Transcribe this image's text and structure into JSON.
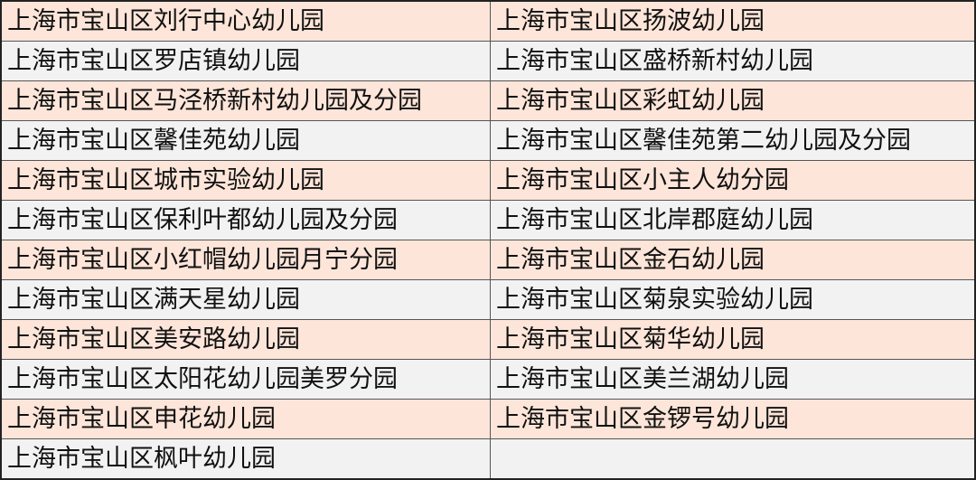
{
  "colors": {
    "odd_row": "#fde5d9",
    "even_row": "#f2f2f2"
  },
  "rows": [
    [
      "上海市宝山区刘行中心幼儿园",
      "上海市宝山区扬波幼儿园"
    ],
    [
      "上海市宝山区罗店镇幼儿园",
      "上海市宝山区盛桥新村幼儿园"
    ],
    [
      "上海市宝山区马泾桥新村幼儿园及分园",
      "上海市宝山区彩虹幼儿园"
    ],
    [
      "上海市宝山区馨佳苑幼儿园",
      "上海市宝山区馨佳苑第二幼儿园及分园"
    ],
    [
      "上海市宝山区城市实验幼儿园",
      "上海市宝山区小主人幼分园"
    ],
    [
      "上海市宝山区保利叶都幼儿园及分园",
      "上海市宝山区北岸郡庭幼儿园"
    ],
    [
      "上海市宝山区小红帽幼儿园月宁分园",
      "上海市宝山区金石幼儿园"
    ],
    [
      "上海市宝山区满天星幼儿园",
      "上海市宝山区菊泉实验幼儿园"
    ],
    [
      "上海市宝山区美安路幼儿园",
      "上海市宝山区菊华幼儿园"
    ],
    [
      "上海市宝山区太阳花幼儿园美罗分园",
      "上海市宝山区美兰湖幼儿园"
    ],
    [
      "上海市宝山区申花幼儿园",
      "上海市宝山区金锣号幼儿园"
    ],
    [
      "上海市宝山区枫叶幼儿园",
      ""
    ]
  ]
}
